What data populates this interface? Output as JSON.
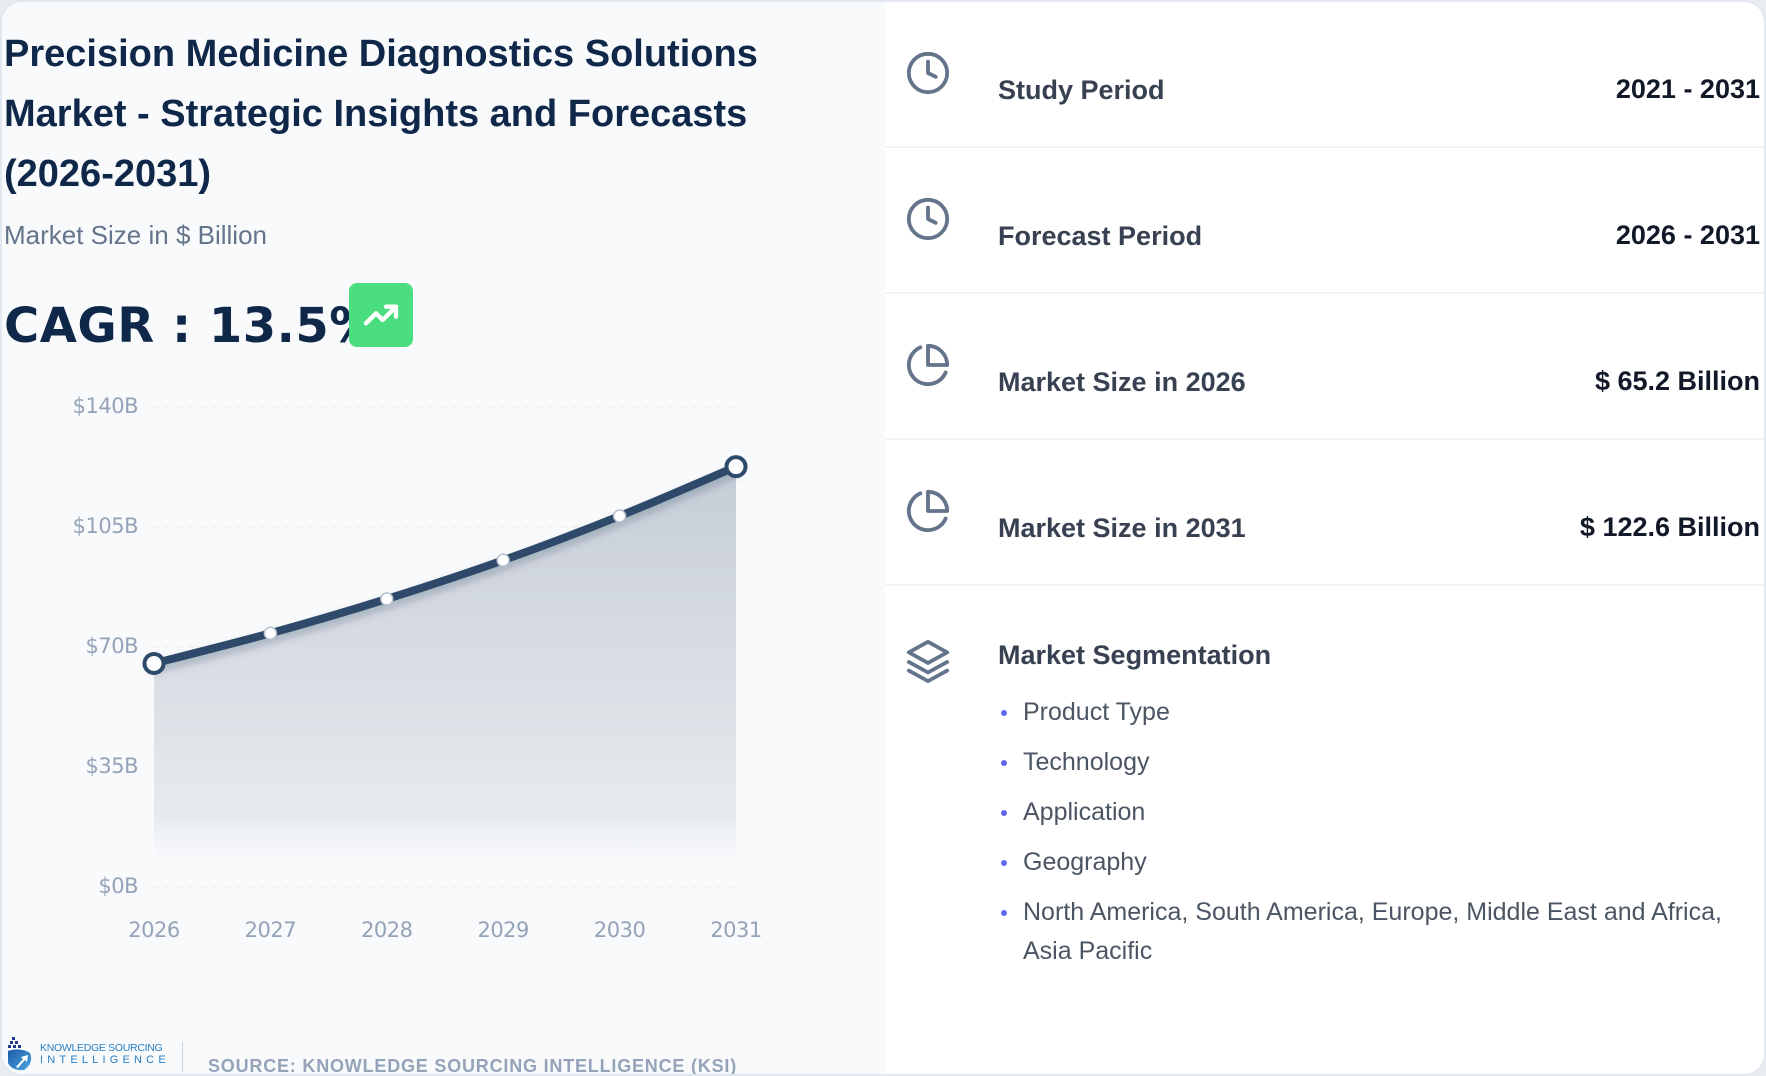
{
  "header": {
    "title": "Precision Medicine Diagnostics Solutions Market - Strategic Insights and Forecasts (2026-2031)",
    "subtitle": "Market Size in $ Billion",
    "cagr_label": "CAGR : 13.5%",
    "cagr_icon": "trending-up-icon",
    "cagr_badge_color": "#4ade80"
  },
  "chart_data": {
    "type": "area",
    "title": "Precision Medicine Diagnostics Solutions Market",
    "xlabel": "",
    "ylabel": "Market Size in $ Billion",
    "categories": [
      "2026",
      "2027",
      "2028",
      "2029",
      "2030",
      "2031"
    ],
    "values": [
      65.2,
      74.0,
      84.0,
      95.3,
      108.2,
      122.6
    ],
    "y_ticks": [
      "$140B",
      "$105B",
      "$70B",
      "$35B",
      "$0B"
    ],
    "y_tick_values": [
      140,
      105,
      70,
      35,
      0
    ],
    "ylim": [
      0,
      140
    ],
    "grid": true,
    "legend": "none",
    "line_color": "#2d4a6b",
    "fill_color": "#cbd2db"
  },
  "footer": {
    "logo_line1": "KNOWLEDGE SOURCING",
    "logo_line2": "INTELLIGENCE",
    "source": "SOURCE: KNOWLEDGE SOURCING INTELLIGENCE (KSI)"
  },
  "stats": [
    {
      "icon": "clock-icon",
      "label": "Study Period",
      "value": "2021 - 2031"
    },
    {
      "icon": "clock-icon",
      "label": "Forecast Period",
      "value": "2026 - 2031"
    },
    {
      "icon": "pie-chart-icon",
      "label": "Market Size in 2026",
      "value": "$ 65.2 Billion"
    },
    {
      "icon": "pie-chart-icon",
      "label": "Market Size in 2031",
      "value": "$ 122.6 Billion"
    }
  ],
  "segmentation": {
    "icon": "layers-icon",
    "title": "Market Segmentation",
    "items": [
      "Product Type",
      "Technology",
      "Application",
      "Geography",
      "North America, South America, Europe, Middle East and Africa, Asia Pacific"
    ]
  }
}
